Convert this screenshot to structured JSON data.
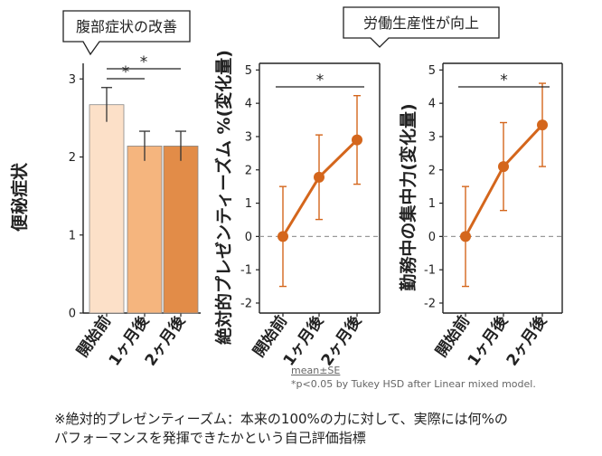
{
  "callouts": {
    "left": "腹部症状の改善",
    "right": "労働生産性が向上"
  },
  "footnotes": {
    "mean_se": "mean±SE",
    "significance": "*p<0.05 by  Tukey HSD after Linear mixed model."
  },
  "note": {
    "line1": "※絶対的プレゼンティーズム：本来の100%の力に対して、実際には何%の",
    "line2": "パフォーマンスを発揮できたかという自己評価指標"
  },
  "colors": {
    "bar_1": "#fce0c8",
    "bar_2": "#f5b57e",
    "bar_3": "#e28c48",
    "line": "#d4661c",
    "zero_line": "#999999"
  },
  "chart_data": [
    {
      "type": "bar",
      "categories": [
        "開始前",
        "1ヶ月後",
        "2ヶ月後"
      ],
      "values": [
        2.67,
        2.14,
        2.14
      ],
      "errors": [
        0.22,
        0.19,
        0.19
      ],
      "ylabel": "便秘症状",
      "ylim": [
        0,
        3.2
      ],
      "yticks": [
        "0",
        "1",
        "2",
        "3"
      ],
      "significance": [
        {
          "from": 0,
          "to": 1,
          "label": "*"
        },
        {
          "from": 0,
          "to": 2,
          "label": "*"
        }
      ]
    },
    {
      "type": "line",
      "categories": [
        "開始前",
        "1ヶ月後",
        "2ヶ月後"
      ],
      "values": [
        0,
        1.78,
        2.9
      ],
      "errors": [
        1.5,
        1.27,
        1.33
      ],
      "ylabel": "絶対的プレゼンティーズム %(変化量)",
      "ylim": [
        -2.3,
        5.2
      ],
      "yticks": [
        "-2",
        "-1",
        "0",
        "1",
        "2",
        "3",
        "4",
        "5"
      ],
      "significance": [
        {
          "from": 0,
          "to": 2,
          "label": "*"
        }
      ]
    },
    {
      "type": "line",
      "categories": [
        "開始前",
        "1ヶ月後",
        "2ヶ月後"
      ],
      "values": [
        0,
        2.1,
        3.35
      ],
      "errors": [
        1.5,
        1.32,
        1.25
      ],
      "ylabel": "勤務中の集中力(変化量)",
      "ylim": [
        -2.3,
        5.2
      ],
      "yticks": [
        "-2",
        "-1",
        "0",
        "1",
        "2",
        "3",
        "4",
        "5"
      ],
      "significance": [
        {
          "from": 0,
          "to": 2,
          "label": "*"
        }
      ]
    }
  ]
}
